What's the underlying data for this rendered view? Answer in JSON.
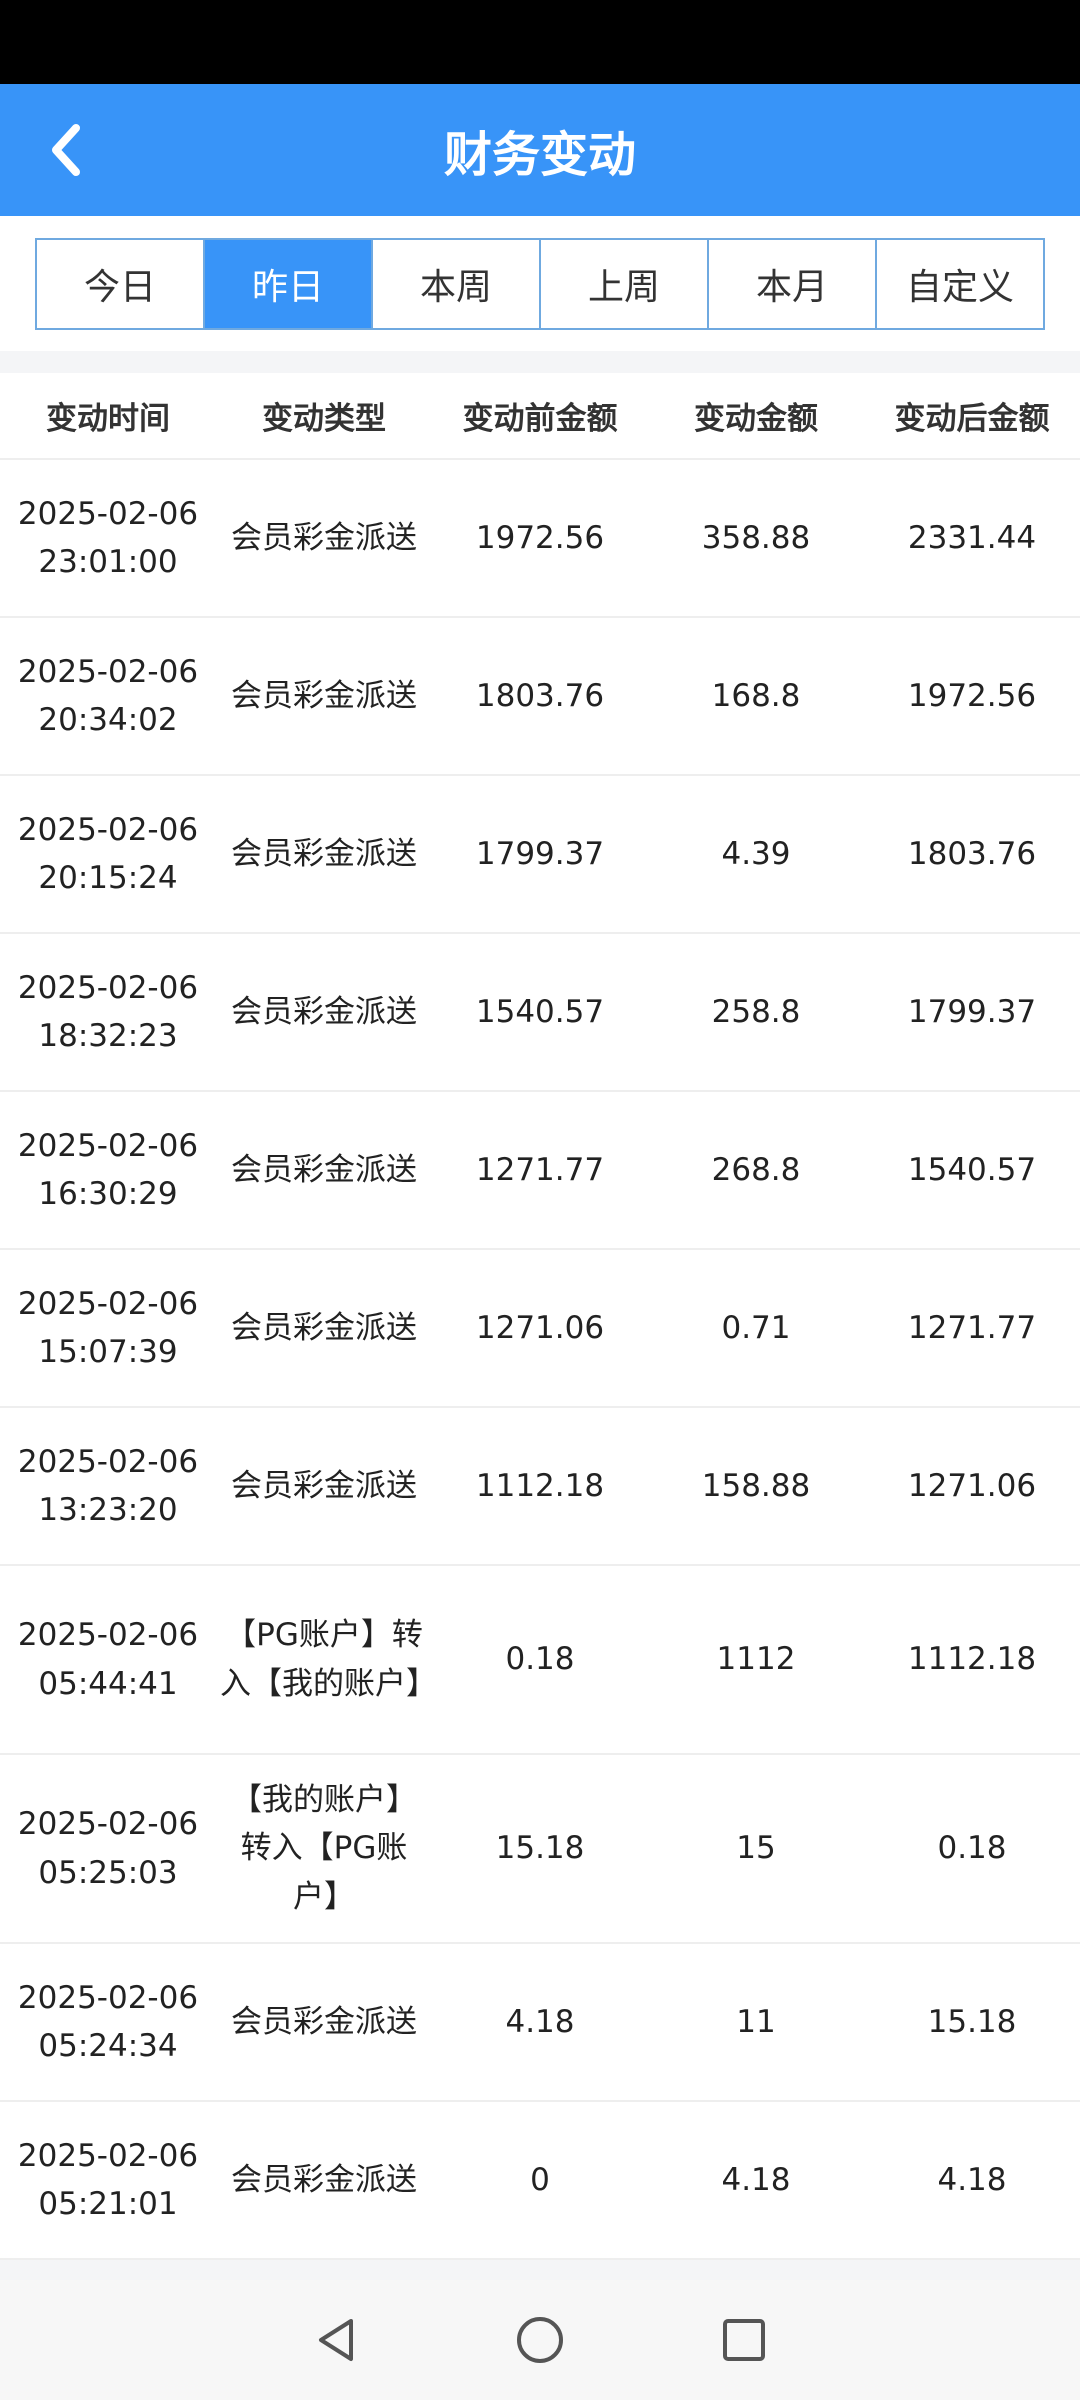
{
  "header": {
    "title": "财务变动"
  },
  "tabs": [
    {
      "label": "今日"
    },
    {
      "label": "昨日",
      "active": true
    },
    {
      "label": "本周"
    },
    {
      "label": "上周"
    },
    {
      "label": "本月"
    },
    {
      "label": "自定义"
    }
  ],
  "table": {
    "columns": [
      "变动时间",
      "变动类型",
      "变动前金额",
      "变动金额",
      "变动后金额"
    ],
    "rows": [
      {
        "date": "2025-02-06",
        "time": "23:01:00",
        "type": "会员彩金派送",
        "before": "1972.56",
        "amount": "358.88",
        "after": "2331.44"
      },
      {
        "date": "2025-02-06",
        "time": "20:34:02",
        "type": "会员彩金派送",
        "before": "1803.76",
        "amount": "168.8",
        "after": "1972.56"
      },
      {
        "date": "2025-02-06",
        "time": "20:15:24",
        "type": "会员彩金派送",
        "before": "1799.37",
        "amount": "4.39",
        "after": "1803.76"
      },
      {
        "date": "2025-02-06",
        "time": "18:32:23",
        "type": "会员彩金派送",
        "before": "1540.57",
        "amount": "258.8",
        "after": "1799.37"
      },
      {
        "date": "2025-02-06",
        "time": "16:30:29",
        "type": "会员彩金派送",
        "before": "1271.77",
        "amount": "268.8",
        "after": "1540.57"
      },
      {
        "date": "2025-02-06",
        "time": "15:07:39",
        "type": "会员彩金派送",
        "before": "1271.06",
        "amount": "0.71",
        "after": "1271.77"
      },
      {
        "date": "2025-02-06",
        "time": "13:23:20",
        "type": "会员彩金派送",
        "before": "1112.18",
        "amount": "158.88",
        "after": "1271.06"
      },
      {
        "date": "2025-02-06",
        "time": "05:44:41",
        "type": "【PG账户】转入【我的账户】",
        "before": "0.18",
        "amount": "1112",
        "after": "1112.18"
      },
      {
        "date": "2025-02-06",
        "time": "05:25:03",
        "type": "【我的账户】转入【PG账户】",
        "before": "15.18",
        "amount": "15",
        "after": "0.18"
      },
      {
        "date": "2025-02-06",
        "time": "05:24:34",
        "type": "会员彩金派送",
        "before": "4.18",
        "amount": "11",
        "after": "15.18"
      },
      {
        "date": "2025-02-06",
        "time": "05:21:01",
        "type": "会员彩金派送",
        "before": "0",
        "amount": "4.18",
        "after": "4.18"
      }
    ]
  },
  "colors": {
    "primary": "#3894f8"
  },
  "nav": {
    "icons": [
      "back-triangle-icon",
      "home-circle-icon",
      "recents-square-icon"
    ]
  }
}
